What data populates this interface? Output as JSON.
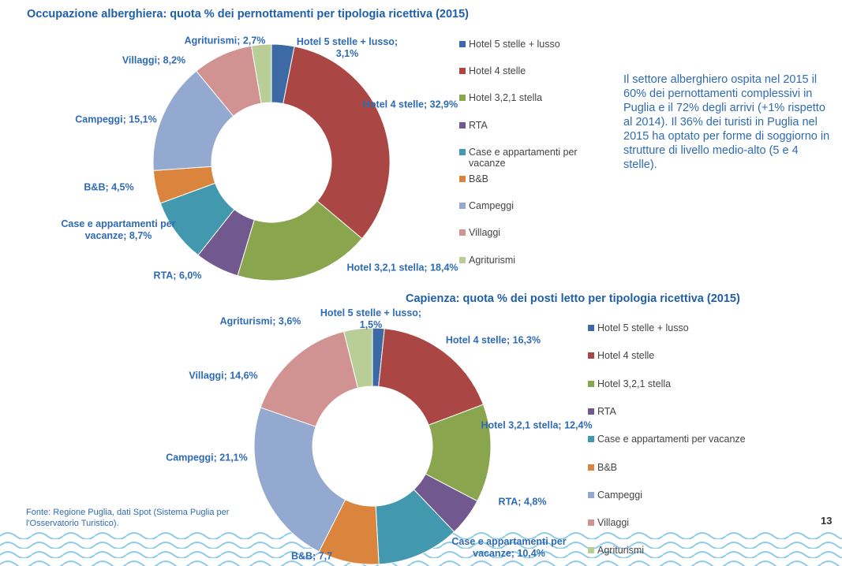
{
  "chart_data": [
    {
      "type": "donut",
      "title": "Occupazione alberghiera: quota % dei pernottamenti per tipologia ricettiva (2015)",
      "categories": [
        "Hotel 5 stelle + lusso",
        "Hotel 4 stelle",
        "Hotel 3,2,1 stella",
        "RTA",
        "Case e appartamenti per vacanze",
        "B&B",
        "Campeggi",
        "Villaggi",
        "Agriturismi"
      ],
      "values": [
        3.1,
        32.9,
        18.4,
        6.0,
        8.7,
        4.5,
        15.1,
        8.2,
        2.7
      ],
      "value_labels": [
        "Hotel 5 stelle + lusso; 3,1%",
        "Hotel 4 stelle; 32,9%",
        "Hotel 3,2,1 stella; 18,4%",
        "RTA; 6,0%",
        "Case e appartamenti per vacanze; 8,7%",
        "B&B; 4,5%",
        "Campeggi; 15,1%",
        "Villaggi; 8,2%",
        "Agriturismi; 2,7%"
      ],
      "colors": [
        "#3d6aa5",
        "#aa4643",
        "#89a54e",
        "#71588f",
        "#4198af",
        "#db843d",
        "#93a9cf",
        "#d19392",
        "#b9cd96"
      ]
    },
    {
      "type": "donut",
      "title": "Capienza: quota % dei posti letto per tipologia ricettiva (2015)",
      "categories": [
        "Hotel 5 stelle + lusso",
        "Hotel 4 stelle",
        "Hotel 3,2,1 stella",
        "RTA",
        "Case e appartamenti per vacanze",
        "B&B",
        "Campeggi",
        "Villaggi",
        "Agriturismi"
      ],
      "values": [
        1.5,
        16.3,
        12.4,
        4.8,
        10.4,
        7.7,
        21.1,
        14.6,
        3.6
      ],
      "value_labels": [
        "Hotel 5 stelle + lusso; 1,5%",
        "Hotel 4 stelle; 16,3%",
        "Hotel 3,2,1 stella; 12,4%",
        "RTA; 4,8%",
        "Case e appartamenti per vacanze; 10,4%",
        "B&B; 7,7",
        "Campeggi; 21,1%",
        "Villaggi; 14,6%",
        "Agriturismi; 3,6%"
      ],
      "colors": [
        "#3d6aa5",
        "#aa4643",
        "#89a54e",
        "#71588f",
        "#4198af",
        "#db843d",
        "#93a9cf",
        "#d19392",
        "#b9cd96"
      ]
    }
  ],
  "text": "Il settore alberghiero ospita nel 2015 il 60% dei pernottamenti complessivi in Puglia e il 72% degli arrivi (+1% rispetto al 2014). Il 36% dei turisti in Puglia nel 2015 ha optato per forme di soggiorno in strutture di livello medio-alto (5 e 4 stelle).",
  "source": "Fonte: Regione Puglia, dati Spot (Sistema Puglia per l'Osservatorio Turistico).",
  "page_number": "13"
}
